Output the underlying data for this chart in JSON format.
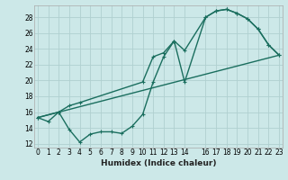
{
  "xlabel": "Humidex (Indice chaleur)",
  "bg_color": "#cce8e8",
  "grid_color": "#b0d0d0",
  "line_color": "#1a6e5e",
  "x_ticks": [
    0,
    1,
    2,
    3,
    4,
    5,
    6,
    7,
    8,
    9,
    10,
    11,
    12,
    13,
    14,
    16,
    17,
    18,
    19,
    20,
    21,
    22,
    23
  ],
  "xlim": [
    -0.3,
    23.3
  ],
  "ylim": [
    11.5,
    29.5
  ],
  "y_ticks": [
    12,
    14,
    16,
    18,
    20,
    22,
    24,
    26,
    28
  ],
  "line1_x": [
    0,
    1,
    2,
    3,
    4,
    5,
    6,
    7,
    8,
    9,
    10,
    11,
    12,
    13,
    14,
    16,
    17,
    18,
    19,
    20,
    21,
    22,
    23
  ],
  "line1_y": [
    15.3,
    14.8,
    16.0,
    13.8,
    12.2,
    13.2,
    13.5,
    13.5,
    13.3,
    14.2,
    15.7,
    19.8,
    23.0,
    25.0,
    19.8,
    28.0,
    28.8,
    29.0,
    28.5,
    27.8,
    26.5,
    24.5,
    23.2
  ],
  "line2_x": [
    0,
    2,
    3,
    4,
    10,
    11,
    12,
    13,
    14,
    16,
    17,
    18,
    19,
    20,
    21,
    22,
    23
  ],
  "line2_y": [
    15.3,
    16.0,
    16.8,
    17.2,
    19.8,
    23.0,
    23.5,
    25.0,
    23.8,
    28.0,
    28.8,
    29.0,
    28.5,
    27.8,
    26.5,
    24.5,
    23.2
  ],
  "line3_x": [
    0,
    23
  ],
  "line3_y": [
    15.3,
    23.2
  ],
  "marker_size": 2.8,
  "linewidth": 1.0,
  "tick_fontsize": 5.5,
  "xlabel_fontsize": 6.5
}
